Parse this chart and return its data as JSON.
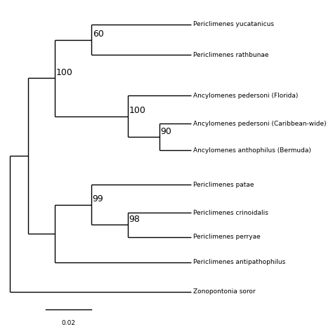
{
  "taxa": [
    "Periclimenes yucatanicus",
    "Periclimenes rathbunae",
    "Ancylomenes pedersoni (Florida)",
    "Ancylomenes pedersoni (Caribbean-wide)",
    "Ancylomenes anthophilus (Bermuda)",
    "Periclimenes patae",
    "Periclimenes crinoidalis",
    "Periclimenes perryae",
    "Periclimenes antipathophilus",
    "Zonopontonia soror"
  ],
  "background_color": "#ffffff",
  "line_color": "#000000",
  "label_fontsize": 6.5,
  "bootstrap_fontsize": 9.0,
  "scale_bar_label": "0.02"
}
